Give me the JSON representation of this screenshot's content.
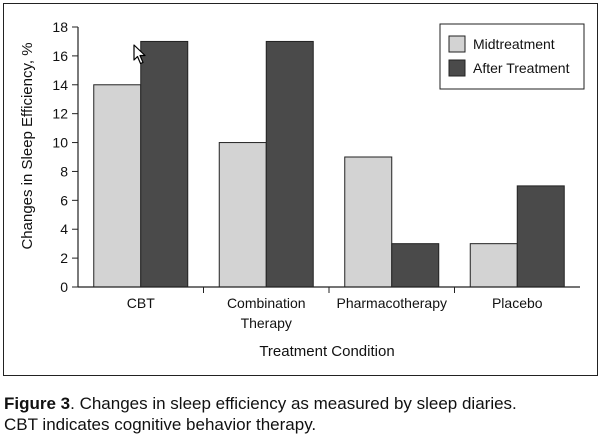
{
  "chart_data": {
    "type": "bar",
    "categories": [
      "CBT",
      [
        "Combination",
        "Therapy"
      ],
      "Pharmacotherapy",
      "Placebo"
    ],
    "series": [
      {
        "name": "Midtreatment",
        "values": [
          14,
          10,
          9,
          3
        ],
        "color": "#d3d3d3"
      },
      {
        "name": "After Treatment",
        "values": [
          17,
          17,
          3,
          7
        ],
        "color": "#4a4a4a"
      }
    ],
    "xlabel": "Treatment Condition",
    "ylabel": "Changes in Sleep Efficiency, %",
    "ylim": [
      0,
      18
    ],
    "yticks": [
      0,
      2,
      4,
      6,
      8,
      10,
      12,
      14,
      16,
      18
    ],
    "grid": false,
    "legend_position": "top-right"
  },
  "caption": {
    "label": "Figure 3",
    "text": ". Changes in sleep efficiency as measured by sleep diaries.",
    "line2": "CBT indicates cognitive behavior therapy."
  },
  "colors": {
    "axis": "#222222",
    "bar_stroke": "#222222"
  },
  "cursor": {
    "icon": "arrow-cursor-icon"
  }
}
